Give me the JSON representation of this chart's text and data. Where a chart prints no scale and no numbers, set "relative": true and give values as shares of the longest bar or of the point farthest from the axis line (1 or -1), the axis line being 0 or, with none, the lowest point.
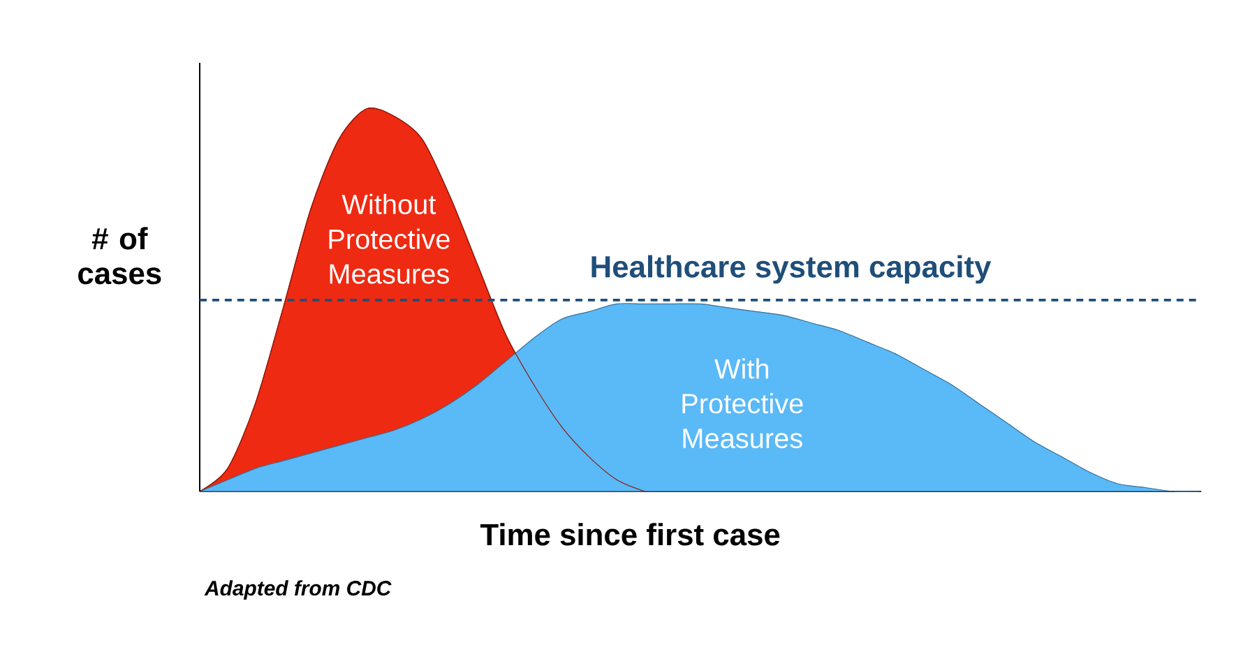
{
  "chart_data": {
    "type": "area",
    "relative": true,
    "ylabel": "# of cases",
    "xlabel": "Time since first case",
    "categories": [
      null,
      null,
      null,
      null,
      null,
      null,
      null,
      null,
      null,
      null,
      null,
      null,
      null,
      null,
      null,
      null,
      null,
      null,
      null,
      null,
      null,
      null,
      null,
      null,
      null,
      null,
      null,
      null,
      null,
      null,
      null,
      null,
      null,
      null,
      null,
      null,
      null
    ],
    "series": [
      {
        "name": "Without Protective Measures",
        "color": "#ee2a12",
        "values": [
          0,
          0.06,
          0.23,
          0.48,
          0.74,
          0.92,
          1.0,
          0.98,
          0.92,
          0.77,
          0.59,
          0.41,
          0.28,
          0.17,
          0.09,
          0.03,
          0,
          null,
          null,
          null,
          null,
          null,
          null,
          null,
          null,
          null,
          null,
          null,
          null,
          null,
          null,
          null,
          null,
          null,
          null,
          null,
          null
        ]
      },
      {
        "name": "With Protective Measures",
        "color": "#5ab9f7",
        "values": [
          0,
          0.03,
          0.06,
          0.08,
          0.1,
          0.12,
          0.14,
          0.16,
          0.19,
          0.23,
          0.28,
          0.34,
          0.4,
          0.45,
          0.47,
          0.49,
          0.49,
          0.49,
          0.49,
          0.48,
          0.47,
          0.46,
          0.44,
          0.42,
          0.39,
          0.36,
          0.32,
          0.28,
          0.23,
          0.18,
          0.13,
          0.09,
          0.05,
          0.02,
          0.01,
          0,
          0
        ]
      }
    ],
    "ref_lines": [
      {
        "axis": "y",
        "value": 0.5,
        "label": "Healthcare system capacity",
        "color": "#1f4e79",
        "line_style": "dashed"
      }
    ],
    "annotations": [
      "Adapted from CDC"
    ]
  }
}
